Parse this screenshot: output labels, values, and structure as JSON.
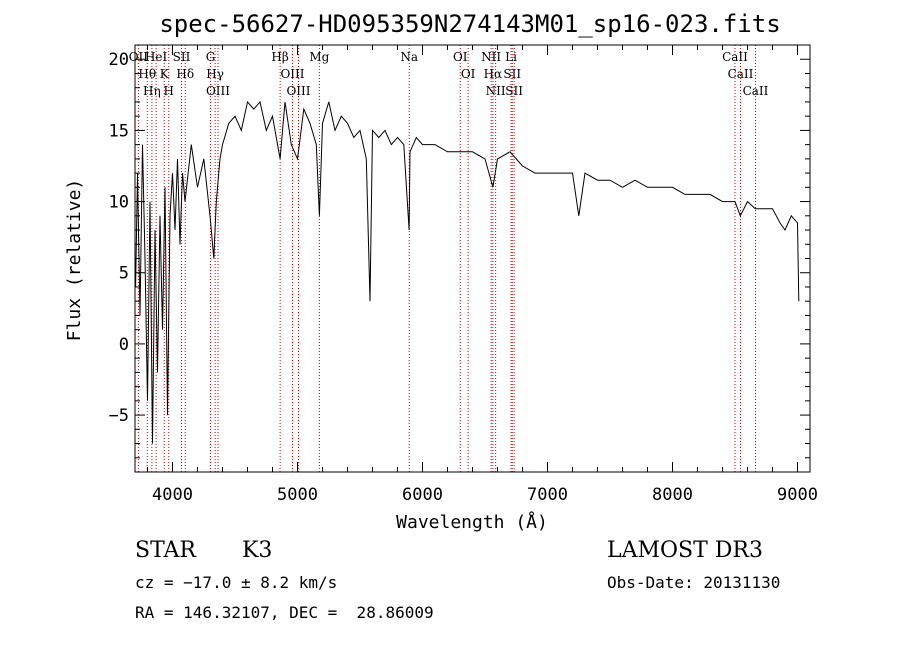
{
  "chart_data": {
    "type": "line",
    "title": "spec-56627-HD095359N274143M01_sp16-023.fits",
    "xlabel": "Wavelength (Å)",
    "ylabel": "Flux (relative)",
    "xlim": [
      3700,
      9100
    ],
    "ylim": [
      -9,
      21
    ],
    "xticks": [
      4000,
      5000,
      6000,
      7000,
      8000,
      9000
    ],
    "yticks": [
      -5,
      0,
      5,
      10,
      15,
      20
    ],
    "series": [
      {
        "name": "flux",
        "x": [
          3705,
          3720,
          3740,
          3760,
          3780,
          3800,
          3820,
          3840,
          3860,
          3880,
          3900,
          3920,
          3940,
          3960,
          3980,
          4000,
          4020,
          4040,
          4060,
          4080,
          4100,
          4150,
          4200,
          4250,
          4300,
          4330,
          4350,
          4380,
          4400,
          4450,
          4500,
          4550,
          4600,
          4650,
          4700,
          4750,
          4800,
          4861,
          4900,
          4950,
          5000,
          5050,
          5100,
          5150,
          5175,
          5200,
          5250,
          5300,
          5350,
          5400,
          5450,
          5500,
          5550,
          5580,
          5600,
          5650,
          5700,
          5750,
          5800,
          5850,
          5893,
          5900,
          5950,
          6000,
          6100,
          6200,
          6300,
          6400,
          6500,
          6563,
          6600,
          6700,
          6800,
          6900,
          7000,
          7100,
          7200,
          7250,
          7300,
          7400,
          7500,
          7600,
          7700,
          7800,
          7900,
          8000,
          8100,
          8200,
          8300,
          8400,
          8500,
          8542,
          8600,
          8662,
          8700,
          8800,
          8860,
          8900,
          8950,
          9000,
          9010
        ],
        "y": [
          4,
          12,
          2,
          14,
          6,
          -4,
          10,
          -7,
          8,
          -2,
          9,
          1,
          11,
          -5,
          9,
          12,
          8,
          13,
          7,
          12,
          10,
          14,
          11,
          13,
          9,
          6,
          10,
          13,
          14,
          15.5,
          16,
          15,
          17,
          16.5,
          17,
          15,
          16,
          13,
          17,
          14,
          13,
          16.5,
          15.5,
          14,
          9,
          15.5,
          17,
          15,
          16,
          15.5,
          14.5,
          15,
          13,
          3,
          15,
          14.5,
          15,
          14,
          14.5,
          14,
          8,
          13.5,
          14.5,
          14,
          14,
          13.5,
          13.5,
          13.5,
          13,
          11,
          13,
          13.5,
          12.5,
          12,
          12,
          12,
          12,
          9,
          12,
          11.5,
          11.5,
          11,
          11.5,
          11,
          11,
          11,
          10.5,
          10.5,
          10.5,
          10,
          10,
          9,
          10,
          9.5,
          9.5,
          9.5,
          8.5,
          8,
          9,
          8.5,
          3
        ]
      }
    ],
    "reference_lines": [
      {
        "wavelength": 3727,
        "labels": [
          "OII"
        ]
      },
      {
        "wavelength": 3798,
        "labels": [
          "Hθ"
        ]
      },
      {
        "wavelength": 3835,
        "labels": [
          "Hη"
        ]
      },
      {
        "wavelength": 3869,
        "labels": [
          "HeI"
        ]
      },
      {
        "wavelength": 3934,
        "labels": [
          "K"
        ]
      },
      {
        "wavelength": 3970,
        "labels": [
          "H"
        ]
      },
      {
        "wavelength": 4072,
        "labels": [
          "SII"
        ]
      },
      {
        "wavelength": 4102,
        "labels": [
          "Hδ"
        ]
      },
      {
        "wavelength": 4304,
        "labels": [
          "G"
        ]
      },
      {
        "wavelength": 4341,
        "labels": [
          "Hγ"
        ]
      },
      {
        "wavelength": 4364,
        "labels": [
          "OIII"
        ]
      },
      {
        "wavelength": 4861,
        "labels": [
          "Hβ"
        ]
      },
      {
        "wavelength": 4960,
        "labels": [
          "OIII"
        ]
      },
      {
        "wavelength": 5008,
        "labels": [
          "OIII"
        ]
      },
      {
        "wavelength": 5175,
        "labels": [
          "Mg"
        ]
      },
      {
        "wavelength": 5894,
        "labels": [
          "Na"
        ]
      },
      {
        "wavelength": 6302,
        "labels": [
          "OI"
        ]
      },
      {
        "wavelength": 6365,
        "labels": [
          "OI"
        ]
      },
      {
        "wavelength": 6549,
        "labels": [
          "NII"
        ]
      },
      {
        "wavelength": 6563,
        "labels": [
          "Hα"
        ]
      },
      {
        "wavelength": 6585,
        "labels": [
          "NII"
        ]
      },
      {
        "wavelength": 6708,
        "labels": [
          "Li"
        ]
      },
      {
        "wavelength": 6718,
        "labels": [
          "SII"
        ]
      },
      {
        "wavelength": 6733,
        "labels": [
          "SII"
        ]
      },
      {
        "wavelength": 8500,
        "labels": [
          "CaII"
        ]
      },
      {
        "wavelength": 8544,
        "labels": [
          "CaII"
        ]
      },
      {
        "wavelength": 8664,
        "labels": [
          "CaII"
        ]
      }
    ],
    "line_color": "#000000",
    "reference_line_color": "#cc0000"
  },
  "info": {
    "object_class": "STAR",
    "subclass": "K3",
    "survey": "LAMOST DR3",
    "cz": "cz = −17.0 ± 8.2 km/s",
    "obs_date": "Obs-Date: 20131130",
    "coords": "RA = 146.32107, DEC =  28.86009"
  }
}
